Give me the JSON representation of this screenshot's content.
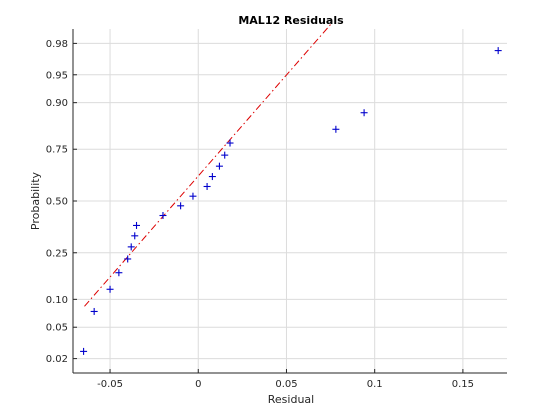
{
  "chart_data": {
    "type": "scatter",
    "title": "MAL12 Residuals",
    "xlabel": "Residual",
    "ylabel": "Probability",
    "xlim": [
      -0.071,
      0.175
    ],
    "ylim": [
      0.0125,
      0.9875
    ],
    "y_scale": "normal-probability",
    "grid": true,
    "x_ticks": [
      {
        "value": -0.05,
        "label": "-0.05"
      },
      {
        "value": 0,
        "label": "0"
      },
      {
        "value": 0.05,
        "label": "0.05"
      },
      {
        "value": 0.1,
        "label": "0.1"
      },
      {
        "value": 0.15,
        "label": "0.15"
      }
    ],
    "y_ticks": [
      {
        "value": 0.02,
        "label": "0.02"
      },
      {
        "value": 0.05,
        "label": "0.05"
      },
      {
        "value": 0.1,
        "label": "0.10"
      },
      {
        "value": 0.25,
        "label": "0.25"
      },
      {
        "value": 0.5,
        "label": "0.50"
      },
      {
        "value": 0.75,
        "label": "0.75"
      },
      {
        "value": 0.9,
        "label": "0.90"
      },
      {
        "value": 0.95,
        "label": "0.95"
      },
      {
        "value": 0.98,
        "label": "0.98"
      }
    ],
    "marker": "+",
    "marker_color": "#0000cc",
    "points": [
      {
        "x": -0.065,
        "y": 0.025
      },
      {
        "x": -0.059,
        "y": 0.075
      },
      {
        "x": -0.05,
        "y": 0.125
      },
      {
        "x": -0.045,
        "y": 0.175
      },
      {
        "x": -0.04,
        "y": 0.225
      },
      {
        "x": -0.038,
        "y": 0.275
      },
      {
        "x": -0.036,
        "y": 0.325
      },
      {
        "x": -0.035,
        "y": 0.375
      },
      {
        "x": -0.02,
        "y": 0.425
      },
      {
        "x": -0.01,
        "y": 0.475
      },
      {
        "x": -0.003,
        "y": 0.525
      },
      {
        "x": 0.005,
        "y": 0.575
      },
      {
        "x": 0.008,
        "y": 0.625
      },
      {
        "x": 0.012,
        "y": 0.675
      },
      {
        "x": 0.015,
        "y": 0.725
      },
      {
        "x": 0.018,
        "y": 0.775
      },
      {
        "x": 0.078,
        "y": 0.825
      },
      {
        "x": 0.094,
        "y": 0.875
      },
      {
        "x": 0.17,
        "y": 0.975
      }
    ],
    "reference_line": {
      "style": "dash-dot",
      "color": "#dd0000",
      "start": {
        "x": -0.0645,
        "y": 0.085
      },
      "end": {
        "x": 0.076,
        "y": 0.99
      }
    }
  }
}
